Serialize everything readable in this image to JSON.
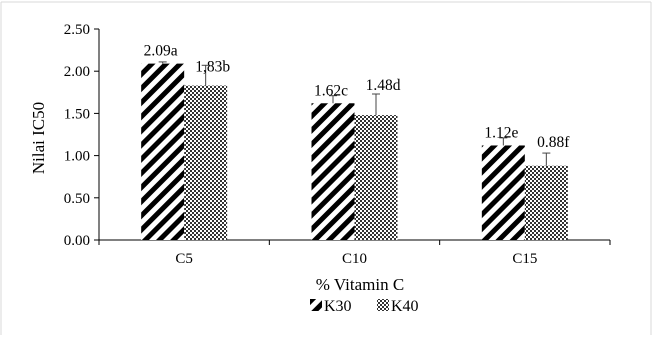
{
  "chart_data": {
    "type": "bar",
    "title": "",
    "xlabel": "% Vitamin C",
    "ylabel": "Nilai IC50",
    "categories": [
      "C5",
      "C10",
      "C15"
    ],
    "ylim": [
      0,
      2.5
    ],
    "yticks": [
      "0.00",
      "0.50",
      "1.00",
      "1.50",
      "2.00",
      "2.50"
    ],
    "grid": false,
    "legend_position": "bottom",
    "series": [
      {
        "name": "K30",
        "pattern": "diagonal-stripes",
        "color": "#000000",
        "values": [
          2.09,
          1.62,
          1.12
        ],
        "errors": [
          0.02,
          0.09,
          0.09
        ],
        "labels": [
          "2.09a",
          "1.62c",
          "1.12e"
        ]
      },
      {
        "name": "K40",
        "pattern": "checker",
        "color": "#000000",
        "values": [
          1.83,
          1.48,
          0.88
        ],
        "errors": [
          0.24,
          0.25,
          0.15
        ],
        "labels": [
          "1,83b",
          "1.48d",
          "0.88f"
        ]
      }
    ]
  }
}
